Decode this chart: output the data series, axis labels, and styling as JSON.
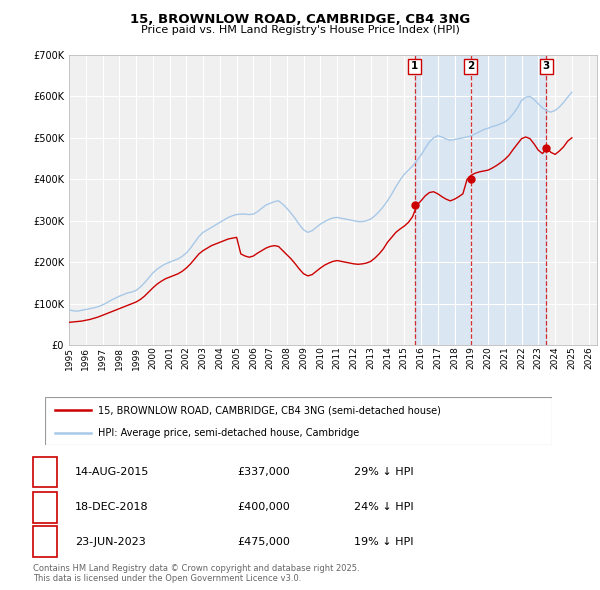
{
  "title": "15, BROWNLOW ROAD, CAMBRIDGE, CB4 3NG",
  "subtitle": "Price paid vs. HM Land Registry's House Price Index (HPI)",
  "ylim": [
    0,
    700000
  ],
  "xlim_start": 1995.0,
  "xlim_end": 2026.5,
  "plot_bg_color": "#f0f0f0",
  "grid_color": "#ffffff",
  "hpi_color": "#a8c8e8",
  "price_color": "#cc0000",
  "vline_color": "#cc0000",
  "shade_color": "#cce0f5",
  "legend_line1": "15, BROWNLOW ROAD, CAMBRIDGE, CB4 3NG (semi-detached house)",
  "legend_line2": "HPI: Average price, semi-detached house, Cambridge",
  "transactions": [
    {
      "num": 1,
      "date": "14-AUG-2015",
      "price": 337000,
      "pct": "29%",
      "year": 2015.62
    },
    {
      "num": 2,
      "date": "18-DEC-2018",
      "price": 400000,
      "pct": "24%",
      "year": 2018.96
    },
    {
      "num": 3,
      "date": "23-JUN-2023",
      "price": 475000,
      "pct": "19%",
      "year": 2023.48
    }
  ],
  "footer": "Contains HM Land Registry data © Crown copyright and database right 2025.\nThis data is licensed under the Open Government Licence v3.0.",
  "hpi_data_x": [
    1995.0,
    1995.25,
    1995.5,
    1995.75,
    1996.0,
    1996.25,
    1996.5,
    1996.75,
    1997.0,
    1997.25,
    1997.5,
    1997.75,
    1998.0,
    1998.25,
    1998.5,
    1998.75,
    1999.0,
    1999.25,
    1999.5,
    1999.75,
    2000.0,
    2000.25,
    2000.5,
    2000.75,
    2001.0,
    2001.25,
    2001.5,
    2001.75,
    2002.0,
    2002.25,
    2002.5,
    2002.75,
    2003.0,
    2003.25,
    2003.5,
    2003.75,
    2004.0,
    2004.25,
    2004.5,
    2004.75,
    2005.0,
    2005.25,
    2005.5,
    2005.75,
    2006.0,
    2006.25,
    2006.5,
    2006.75,
    2007.0,
    2007.25,
    2007.5,
    2007.75,
    2008.0,
    2008.25,
    2008.5,
    2008.75,
    2009.0,
    2009.25,
    2009.5,
    2009.75,
    2010.0,
    2010.25,
    2010.5,
    2010.75,
    2011.0,
    2011.25,
    2011.5,
    2011.75,
    2012.0,
    2012.25,
    2012.5,
    2012.75,
    2013.0,
    2013.25,
    2013.5,
    2013.75,
    2014.0,
    2014.25,
    2014.5,
    2014.75,
    2015.0,
    2015.25,
    2015.5,
    2015.75,
    2016.0,
    2016.25,
    2016.5,
    2016.75,
    2017.0,
    2017.25,
    2017.5,
    2017.75,
    2018.0,
    2018.25,
    2018.5,
    2018.75,
    2019.0,
    2019.25,
    2019.5,
    2019.75,
    2020.0,
    2020.25,
    2020.5,
    2020.75,
    2021.0,
    2021.25,
    2021.5,
    2021.75,
    2022.0,
    2022.25,
    2022.5,
    2022.75,
    2023.0,
    2023.25,
    2023.5,
    2023.75,
    2024.0,
    2024.25,
    2024.5,
    2024.75,
    2025.0
  ],
  "hpi_data_y": [
    85000,
    83000,
    82000,
    84000,
    86000,
    88000,
    90000,
    93000,
    97000,
    102000,
    108000,
    113000,
    118000,
    122000,
    126000,
    128000,
    132000,
    140000,
    150000,
    162000,
    174000,
    183000,
    190000,
    196000,
    200000,
    204000,
    208000,
    214000,
    222000,
    234000,
    248000,
    262000,
    272000,
    278000,
    284000,
    290000,
    296000,
    302000,
    308000,
    312000,
    315000,
    316000,
    316000,
    315000,
    316000,
    322000,
    330000,
    338000,
    342000,
    346000,
    348000,
    340000,
    330000,
    318000,
    305000,
    290000,
    278000,
    272000,
    276000,
    284000,
    292000,
    298000,
    303000,
    307000,
    308000,
    306000,
    304000,
    302000,
    300000,
    298000,
    298000,
    300000,
    304000,
    312000,
    322000,
    334000,
    348000,
    364000,
    382000,
    398000,
    412000,
    422000,
    432000,
    445000,
    458000,
    475000,
    490000,
    500000,
    505000,
    502000,
    497000,
    494000,
    496000,
    498000,
    500000,
    502000,
    505000,
    510000,
    515000,
    520000,
    523000,
    527000,
    530000,
    534000,
    538000,
    546000,
    558000,
    572000,
    590000,
    598000,
    600000,
    592000,
    582000,
    572000,
    565000,
    562000,
    566000,
    574000,
    585000,
    598000,
    610000
  ],
  "price_data_x": [
    1995.0,
    1995.25,
    1995.5,
    1995.75,
    1996.0,
    1996.25,
    1996.5,
    1996.75,
    1997.0,
    1997.25,
    1997.5,
    1997.75,
    1998.0,
    1998.25,
    1998.5,
    1998.75,
    1999.0,
    1999.25,
    1999.5,
    1999.75,
    2000.0,
    2000.25,
    2000.5,
    2000.75,
    2001.0,
    2001.25,
    2001.5,
    2001.75,
    2002.0,
    2002.25,
    2002.5,
    2002.75,
    2003.0,
    2003.25,
    2003.5,
    2003.75,
    2004.0,
    2004.25,
    2004.5,
    2004.75,
    2005.0,
    2005.25,
    2005.5,
    2005.75,
    2006.0,
    2006.25,
    2006.5,
    2006.75,
    2007.0,
    2007.25,
    2007.5,
    2007.75,
    2008.0,
    2008.25,
    2008.5,
    2008.75,
    2009.0,
    2009.25,
    2009.5,
    2009.75,
    2010.0,
    2010.25,
    2010.5,
    2010.75,
    2011.0,
    2011.25,
    2011.5,
    2011.75,
    2012.0,
    2012.25,
    2012.5,
    2012.75,
    2013.0,
    2013.25,
    2013.5,
    2013.75,
    2014.0,
    2014.25,
    2014.5,
    2014.75,
    2015.0,
    2015.25,
    2015.5,
    2015.75,
    2016.0,
    2016.25,
    2016.5,
    2016.75,
    2017.0,
    2017.25,
    2017.5,
    2017.75,
    2018.0,
    2018.25,
    2018.5,
    2018.75,
    2019.0,
    2019.25,
    2019.5,
    2019.75,
    2020.0,
    2020.25,
    2020.5,
    2020.75,
    2021.0,
    2021.25,
    2021.5,
    2021.75,
    2022.0,
    2022.25,
    2022.5,
    2022.75,
    2023.0,
    2023.25,
    2023.5,
    2023.75,
    2024.0,
    2024.25,
    2024.5,
    2024.75,
    2025.0
  ],
  "price_data_y": [
    55000,
    56000,
    57000,
    58000,
    60000,
    62000,
    65000,
    68000,
    72000,
    76000,
    80000,
    84000,
    88000,
    92000,
    96000,
    100000,
    104000,
    110000,
    118000,
    128000,
    138000,
    147000,
    154000,
    160000,
    164000,
    168000,
    172000,
    178000,
    186000,
    196000,
    208000,
    220000,
    228000,
    234000,
    240000,
    244000,
    248000,
    252000,
    256000,
    258000,
    260000,
    220000,
    215000,
    212000,
    215000,
    222000,
    228000,
    234000,
    238000,
    240000,
    238000,
    228000,
    218000,
    208000,
    196000,
    183000,
    172000,
    167000,
    170000,
    178000,
    186000,
    193000,
    198000,
    202000,
    204000,
    202000,
    200000,
    198000,
    196000,
    195000,
    196000,
    198000,
    202000,
    210000,
    220000,
    232000,
    248000,
    260000,
    272000,
    280000,
    287000,
    296000,
    310000,
    337000,
    348000,
    360000,
    368000,
    370000,
    365000,
    358000,
    352000,
    348000,
    352000,
    358000,
    365000,
    400000,
    410000,
    415000,
    418000,
    420000,
    422000,
    427000,
    433000,
    440000,
    448000,
    458000,
    472000,
    485000,
    498000,
    502000,
    498000,
    485000,
    470000,
    462000,
    475000,
    465000,
    460000,
    468000,
    478000,
    492000,
    500000
  ]
}
